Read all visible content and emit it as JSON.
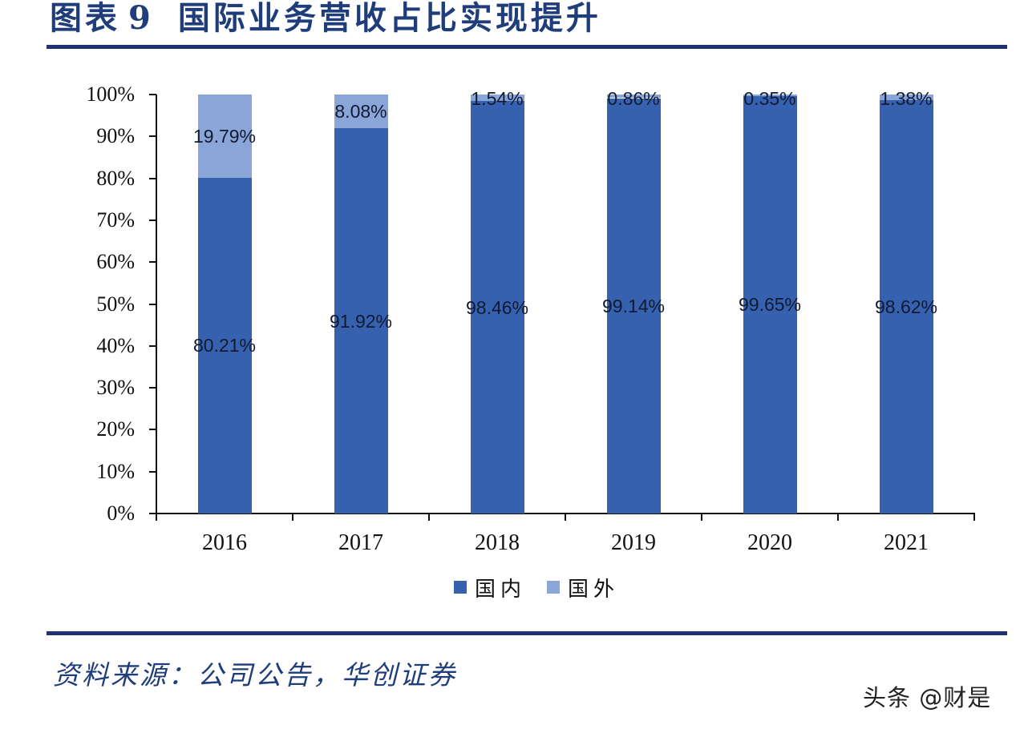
{
  "header": {
    "figure_label": "图表",
    "figure_number": "9",
    "title": "国际业务营收占比实现提升"
  },
  "footer": {
    "source": "资料来源：公司公告，华创证券",
    "watermark": "头条 @财是"
  },
  "colors": {
    "domestic": "#3561ae",
    "international": "#8aa5d8",
    "title": "#1f3d7a",
    "rule": "#1f3276"
  },
  "legend": [
    {
      "label": "国内",
      "color": "#3561ae"
    },
    {
      "label": "国外",
      "color": "#8aa5d8"
    }
  ],
  "y_ticks": [
    "0%",
    "10%",
    "20%",
    "30%",
    "40%",
    "50%",
    "60%",
    "70%",
    "80%",
    "90%",
    "100%"
  ],
  "chart_data": {
    "type": "bar",
    "stacked": true,
    "title": "国际业务营收占比实现提升",
    "xlabel": "",
    "ylabel": "",
    "ylim": [
      0,
      100
    ],
    "y_tick_format": "percent",
    "grid": false,
    "legend_position": "bottom",
    "categories": [
      "2016",
      "2017",
      "2018",
      "2019",
      "2020",
      "2021"
    ],
    "series": [
      {
        "name": "国内",
        "color": "#3561ae",
        "values": [
          80.21,
          91.92,
          98.46,
          99.14,
          99.65,
          98.62
        ],
        "labels": [
          "80.21%",
          "91.92%",
          "98.46%",
          "99.14%",
          "99.65%",
          "98.62%"
        ]
      },
      {
        "name": "国外",
        "color": "#8aa5d8",
        "values": [
          19.79,
          8.08,
          1.54,
          0.86,
          0.35,
          1.38
        ],
        "labels": [
          "19.79%",
          "8.08%",
          "1.54%",
          "0.86%",
          "0.35%",
          "1.38%"
        ]
      }
    ]
  }
}
